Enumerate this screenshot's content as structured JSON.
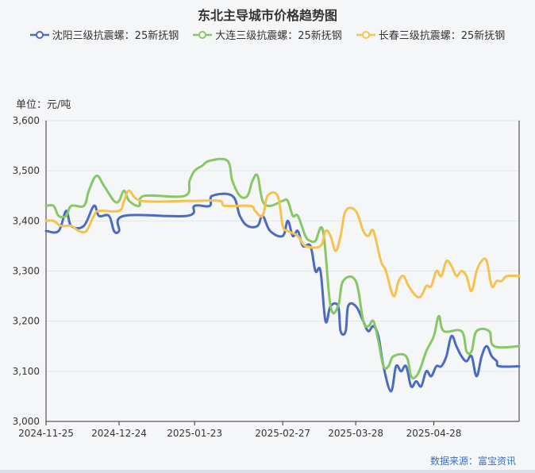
{
  "title": "东北主导城市价格趋势图",
  "unit_label": "单位：元/吨",
  "source": "数据来源：富宝资讯",
  "legend": [
    {
      "label": "沈阳三级抗震螺：25新抚钢",
      "color": "#4a6bbf"
    },
    {
      "label": "大连三级抗震螺：25新抚钢",
      "color": "#86c866"
    },
    {
      "label": "长春三级抗震螺：25新抚钢",
      "color": "#f5c24f"
    }
  ],
  "chart_data": {
    "type": "line",
    "title": "东北主导城市价格趋势图",
    "ylabel": "单位：元/吨",
    "ylim": [
      3000,
      3600
    ],
    "yticks": [
      "3,000",
      "3,100",
      "3,200",
      "3,300",
      "3,400",
      "3,500",
      "3,600"
    ],
    "xticks": [
      "2024-11-25",
      "2024-12-24",
      "2025-01-23",
      "2025-02-27",
      "2025-03-28",
      "2025-04-28"
    ],
    "x_start": "2024-11-25",
    "x_end": "2025-05-24",
    "grid": true,
    "legend_position": "top",
    "series": [
      {
        "name": "沈阳三级抗震螺：25新抚钢",
        "color": "#4a6bbf",
        "points": [
          [
            "2024-11-25",
            3380
          ],
          [
            "2024-11-30",
            3380
          ],
          [
            "2024-12-03",
            3420
          ],
          [
            "2024-12-05",
            3390
          ],
          [
            "2024-12-10",
            3390
          ],
          [
            "2024-12-14",
            3430
          ],
          [
            "2024-12-16",
            3410
          ],
          [
            "2024-12-20",
            3410
          ],
          [
            "2024-12-22",
            3380
          ],
          [
            "2024-12-24",
            3380
          ],
          [
            "2024-12-26",
            3410
          ],
          [
            "2025-01-20",
            3410
          ],
          [
            "2025-01-23",
            3430
          ],
          [
            "2025-01-29",
            3430
          ],
          [
            "2025-01-30",
            3450
          ],
          [
            "2025-02-07",
            3450
          ],
          [
            "2025-02-10",
            3410
          ],
          [
            "2025-02-13",
            3390
          ],
          [
            "2025-02-17",
            3390
          ],
          [
            "2025-02-19",
            3410
          ],
          [
            "2025-02-22",
            3380
          ],
          [
            "2025-02-27",
            3370
          ],
          [
            "2025-03-01",
            3400
          ],
          [
            "2025-03-03",
            3370
          ],
          [
            "2025-03-05",
            3380
          ],
          [
            "2025-03-07",
            3350
          ],
          [
            "2025-03-10",
            3350
          ],
          [
            "2025-03-12",
            3300
          ],
          [
            "2025-03-14",
            3300
          ],
          [
            "2025-03-16",
            3200
          ],
          [
            "2025-03-18",
            3230
          ],
          [
            "2025-03-21",
            3230
          ],
          [
            "2025-03-22",
            3180
          ],
          [
            "2025-03-24",
            3180
          ],
          [
            "2025-03-25",
            3230
          ],
          [
            "2025-03-28",
            3230
          ],
          [
            "2025-03-31",
            3200
          ],
          [
            "2025-04-02",
            3180
          ],
          [
            "2025-04-04",
            3190
          ],
          [
            "2025-04-06",
            3170
          ],
          [
            "2025-04-08",
            3110
          ],
          [
            "2025-04-11",
            3060
          ],
          [
            "2025-04-13",
            3110
          ],
          [
            "2025-04-15",
            3100
          ],
          [
            "2025-04-17",
            3110
          ],
          [
            "2025-04-19",
            3070
          ],
          [
            "2025-04-21",
            3080
          ],
          [
            "2025-04-23",
            3070
          ],
          [
            "2025-04-25",
            3100
          ],
          [
            "2025-04-27",
            3090
          ],
          [
            "2025-04-29",
            3110
          ],
          [
            "2025-05-01",
            3110
          ],
          [
            "2025-05-03",
            3130
          ],
          [
            "2025-05-05",
            3170
          ],
          [
            "2025-05-07",
            3150
          ],
          [
            "2025-05-09",
            3130
          ],
          [
            "2025-05-11",
            3120
          ],
          [
            "2025-05-13",
            3130
          ],
          [
            "2025-05-15",
            3090
          ],
          [
            "2025-05-17",
            3130
          ],
          [
            "2025-05-19",
            3150
          ],
          [
            "2025-05-21",
            3130
          ],
          [
            "2025-05-23",
            3120
          ],
          [
            "2025-05-24",
            3110
          ],
          [
            "2025-06-02",
            3110
          ]
        ]
      },
      {
        "name": "大连三级抗震螺：25新抚钢",
        "color": "#86c866",
        "points": [
          [
            "2024-11-25",
            3430
          ],
          [
            "2024-11-28",
            3430
          ],
          [
            "2024-11-30",
            3410
          ],
          [
            "2024-12-03",
            3410
          ],
          [
            "2024-12-05",
            3430
          ],
          [
            "2024-12-10",
            3430
          ],
          [
            "2024-12-12",
            3460
          ],
          [
            "2024-12-15",
            3490
          ],
          [
            "2024-12-18",
            3470
          ],
          [
            "2024-12-22",
            3440
          ],
          [
            "2024-12-24",
            3440
          ],
          [
            "2024-12-26",
            3460
          ],
          [
            "2024-12-28",
            3440
          ],
          [
            "2025-01-01",
            3430
          ],
          [
            "2025-01-03",
            3450
          ],
          [
            "2025-01-19",
            3450
          ],
          [
            "2025-01-21",
            3480
          ],
          [
            "2025-01-23",
            3500
          ],
          [
            "2025-01-26",
            3510
          ],
          [
            "2025-01-29",
            3520
          ],
          [
            "2025-02-05",
            3520
          ],
          [
            "2025-02-07",
            3480
          ],
          [
            "2025-02-10",
            3450
          ],
          [
            "2025-02-13",
            3450
          ],
          [
            "2025-02-15",
            3480
          ],
          [
            "2025-02-17",
            3490
          ],
          [
            "2025-02-19",
            3440
          ],
          [
            "2025-02-22",
            3430
          ],
          [
            "2025-02-27",
            3440
          ],
          [
            "2025-03-01",
            3440
          ],
          [
            "2025-03-03",
            3410
          ],
          [
            "2025-03-05",
            3410
          ],
          [
            "2025-03-08",
            3370
          ],
          [
            "2025-03-10",
            3360
          ],
          [
            "2025-03-12",
            3360
          ],
          [
            "2025-03-15",
            3380
          ],
          [
            "2025-03-18",
            3230
          ],
          [
            "2025-03-21",
            3230
          ],
          [
            "2025-03-23",
            3280
          ],
          [
            "2025-03-28",
            3280
          ],
          [
            "2025-03-31",
            3200
          ],
          [
            "2025-04-02",
            3190
          ],
          [
            "2025-04-04",
            3200
          ],
          [
            "2025-04-06",
            3160
          ],
          [
            "2025-04-08",
            3110
          ],
          [
            "2025-04-10",
            3110
          ],
          [
            "2025-04-12",
            3130
          ],
          [
            "2025-04-17",
            3130
          ],
          [
            "2025-04-19",
            3090
          ],
          [
            "2025-04-21",
            3090
          ],
          [
            "2025-04-23",
            3110
          ],
          [
            "2025-04-25",
            3140
          ],
          [
            "2025-04-28",
            3170
          ],
          [
            "2025-04-30",
            3210
          ],
          [
            "2025-05-02",
            3180
          ],
          [
            "2025-05-09",
            3180
          ],
          [
            "2025-05-11",
            3140
          ],
          [
            "2025-05-13",
            3140
          ],
          [
            "2025-05-15",
            3180
          ],
          [
            "2025-05-20",
            3180
          ],
          [
            "2025-05-22",
            3150
          ],
          [
            "2025-06-02",
            3150
          ]
        ]
      },
      {
        "name": "长春三级抗震螺：25新抚钢",
        "color": "#f5c24f",
        "points": [
          [
            "2024-11-25",
            3400
          ],
          [
            "2024-11-28",
            3400
          ],
          [
            "2024-12-01",
            3390
          ],
          [
            "2024-12-05",
            3390
          ],
          [
            "2024-12-08",
            3380
          ],
          [
            "2024-12-11",
            3380
          ],
          [
            "2024-12-14",
            3410
          ],
          [
            "2024-12-16",
            3420
          ],
          [
            "2024-12-24",
            3420
          ],
          [
            "2024-12-26",
            3440
          ],
          [
            "2024-12-28",
            3460
          ],
          [
            "2025-01-02",
            3440
          ],
          [
            "2025-01-20",
            3440
          ],
          [
            "2025-01-23",
            3440
          ],
          [
            "2025-02-02",
            3440
          ],
          [
            "2025-02-04",
            3430
          ],
          [
            "2025-02-14",
            3430
          ],
          [
            "2025-02-16",
            3420
          ],
          [
            "2025-02-19",
            3410
          ],
          [
            "2025-02-21",
            3450
          ],
          [
            "2025-02-25",
            3450
          ],
          [
            "2025-02-27",
            3390
          ],
          [
            "2025-03-01",
            3380
          ],
          [
            "2025-03-05",
            3370
          ],
          [
            "2025-03-08",
            3350
          ],
          [
            "2025-03-14",
            3350
          ],
          [
            "2025-03-16",
            3380
          ],
          [
            "2025-03-18",
            3370
          ],
          [
            "2025-03-20",
            3340
          ],
          [
            "2025-03-22",
            3370
          ],
          [
            "2025-03-24",
            3420
          ],
          [
            "2025-03-28",
            3420
          ],
          [
            "2025-03-31",
            3380
          ],
          [
            "2025-04-02",
            3370
          ],
          [
            "2025-04-04",
            3380
          ],
          [
            "2025-04-07",
            3320
          ],
          [
            "2025-04-09",
            3300
          ],
          [
            "2025-04-12",
            3250
          ],
          [
            "2025-04-14",
            3280
          ],
          [
            "2025-04-16",
            3290
          ],
          [
            "2025-04-18",
            3270
          ],
          [
            "2025-04-21",
            3250
          ],
          [
            "2025-04-23",
            3250
          ],
          [
            "2025-04-25",
            3270
          ],
          [
            "2025-04-27",
            3270
          ],
          [
            "2025-04-29",
            3300
          ],
          [
            "2025-05-01",
            3290
          ],
          [
            "2025-05-03",
            3320
          ],
          [
            "2025-05-05",
            3310
          ],
          [
            "2025-05-07",
            3290
          ],
          [
            "2025-05-09",
            3300
          ],
          [
            "2025-05-11",
            3290
          ],
          [
            "2025-05-13",
            3260
          ],
          [
            "2025-05-15",
            3300
          ],
          [
            "2025-05-17",
            3320
          ],
          [
            "2025-05-19",
            3320
          ],
          [
            "2025-05-21",
            3270
          ],
          [
            "2025-05-23",
            3280
          ],
          [
            "2025-05-25",
            3280
          ],
          [
            "2025-05-27",
            3290
          ],
          [
            "2025-06-02",
            3290
          ]
        ]
      }
    ]
  }
}
